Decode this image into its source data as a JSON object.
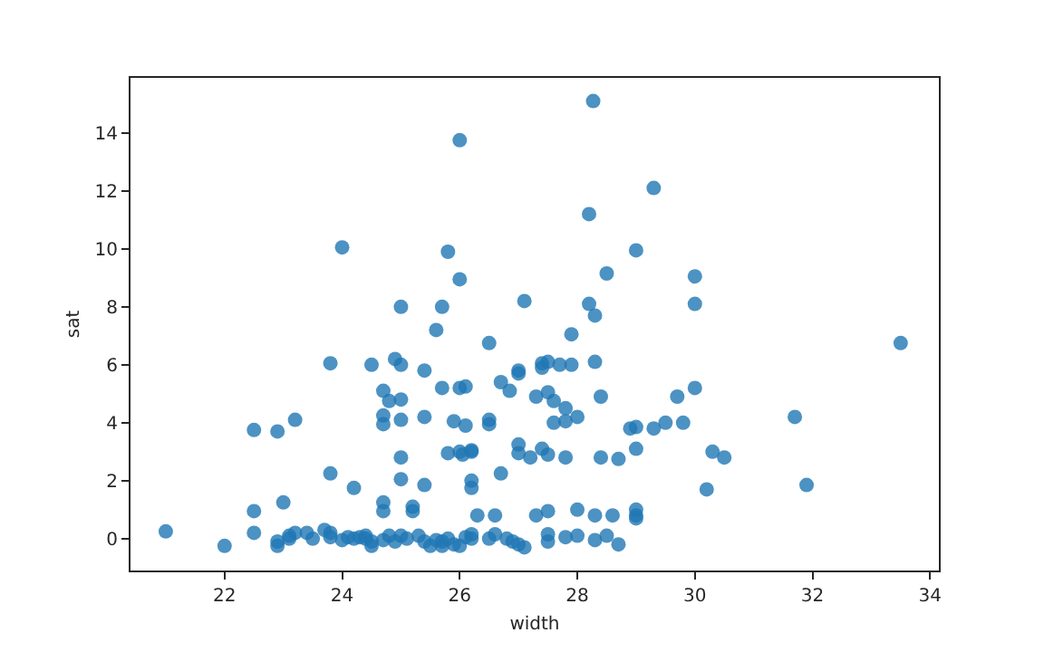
{
  "chart_data": {
    "type": "scatter",
    "xlabel": "width",
    "ylabel": "sat",
    "marker": "circle",
    "xlim": [
      20.4,
      34.15
    ],
    "ylim": [
      -1.1,
      15.9
    ],
    "xticks": [
      22,
      24,
      26,
      28,
      30,
      32,
      34
    ],
    "yticks": [
      0,
      2,
      4,
      6,
      8,
      10,
      12,
      14
    ],
    "series": [
      {
        "color": "#1f77b4",
        "x": [
          28.27,
          26.0,
          29.3,
          24.0,
          28.2,
          25.8,
          29.0,
          26.0,
          28.5,
          25.0,
          25.7,
          27.1,
          28.2,
          30.0,
          30.0,
          25.6,
          28.3,
          27.9,
          26.5,
          33.5,
          23.8,
          24.5,
          24.9,
          25.0,
          25.4,
          24.7,
          25.7,
          26.0,
          26.1,
          27.0,
          27.0,
          27.4,
          27.5,
          27.4,
          27.7,
          27.9,
          28.3,
          26.7,
          26.85,
          27.3,
          27.5,
          24.8,
          25.0,
          27.6,
          27.8,
          28.4,
          29.7,
          30.0,
          24.7,
          24.7,
          25.0,
          25.4,
          25.9,
          26.1,
          26.5,
          26.5,
          28.0,
          27.6,
          27.8,
          28.9,
          29.0,
          29.3,
          29.5,
          29.8,
          31.7,
          22.5,
          22.9,
          23.2,
          25.0,
          25.8,
          26.0,
          26.2,
          26.2,
          26.05,
          27.0,
          27.0,
          27.2,
          27.4,
          27.5,
          27.8,
          28.4,
          28.7,
          29.0,
          30.3,
          30.5,
          25.0,
          25.4,
          26.2,
          26.2,
          26.7,
          23.8,
          24.2,
          30.2,
          31.9,
          23.0,
          22.5,
          24.7,
          24.7,
          25.2,
          25.2,
          26.3,
          26.6,
          27.3,
          27.5,
          28.0,
          28.3,
          28.6,
          29.0,
          29.0,
          29.0,
          21.0,
          22.5,
          22.0,
          22.9,
          22.9,
          23.1,
          23.2,
          23.1,
          23.4,
          23.5,
          23.7,
          23.8,
          23.8,
          24.0,
          24.1,
          24.2,
          24.3,
          24.4,
          24.4,
          24.5,
          24.5,
          24.7,
          24.8,
          24.9,
          25.0,
          25.1,
          25.3,
          25.4,
          25.5,
          25.6,
          25.7,
          25.7,
          25.8,
          25.9,
          26.0,
          26.1,
          26.2,
          26.2,
          26.5,
          26.6,
          26.8,
          26.9,
          27.0,
          27.1,
          27.5,
          27.5,
          27.8,
          28.0,
          28.3,
          28.5,
          28.7
        ],
        "values": [
          15.1,
          13.75,
          12.1,
          10.05,
          11.2,
          9.9,
          9.95,
          8.95,
          9.15,
          8.0,
          8.0,
          8.2,
          8.1,
          8.1,
          9.05,
          7.2,
          7.7,
          7.05,
          6.75,
          6.75,
          6.05,
          6.0,
          6.2,
          6.0,
          5.8,
          5.1,
          5.2,
          5.2,
          5.25,
          5.8,
          5.7,
          6.05,
          6.1,
          5.9,
          6.0,
          6.0,
          6.1,
          5.4,
          5.1,
          4.9,
          5.05,
          4.75,
          4.8,
          4.75,
          4.5,
          4.9,
          4.9,
          5.2,
          4.25,
          3.95,
          4.1,
          4.2,
          4.05,
          3.9,
          3.95,
          4.1,
          4.2,
          4.0,
          4.05,
          3.8,
          3.85,
          3.8,
          4.0,
          4.0,
          4.2,
          3.75,
          3.7,
          4.1,
          2.8,
          2.95,
          3.0,
          3.0,
          3.05,
          2.9,
          3.25,
          2.95,
          2.8,
          3.1,
          2.9,
          2.8,
          2.8,
          2.75,
          3.1,
          3.0,
          2.8,
          2.05,
          1.85,
          2.0,
          1.75,
          2.25,
          2.25,
          1.75,
          1.7,
          1.85,
          1.25,
          0.95,
          1.25,
          0.95,
          1.1,
          0.95,
          0.8,
          0.8,
          0.8,
          0.95,
          1.0,
          0.8,
          0.8,
          1.0,
          0.8,
          0.7,
          0.25,
          0.2,
          -0.25,
          -0.1,
          -0.25,
          0.1,
          0.2,
          0.0,
          0.2,
          0.0,
          0.3,
          0.2,
          0.05,
          -0.05,
          0.05,
          0.0,
          0.05,
          0.1,
          0.0,
          -0.1,
          -0.25,
          -0.05,
          0.1,
          -0.1,
          0.1,
          0.0,
          0.1,
          -0.1,
          -0.25,
          -0.05,
          -0.1,
          -0.25,
          0.0,
          -0.2,
          -0.25,
          0.05,
          0.0,
          0.15,
          0.0,
          0.15,
          0.0,
          -0.1,
          -0.2,
          -0.3,
          0.15,
          -0.1,
          0.05,
          0.1,
          -0.05,
          0.1,
          -0.2
        ]
      }
    ]
  }
}
